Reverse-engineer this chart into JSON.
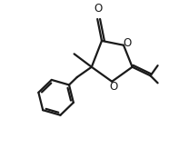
{
  "background": "#ffffff",
  "line_color": "#1a1a1a",
  "line_width": 1.6,
  "figsize": [
    2.08,
    1.64
  ],
  "dpi": 100,
  "xlim": [
    0,
    10
  ],
  "ylim": [
    0,
    10
  ]
}
